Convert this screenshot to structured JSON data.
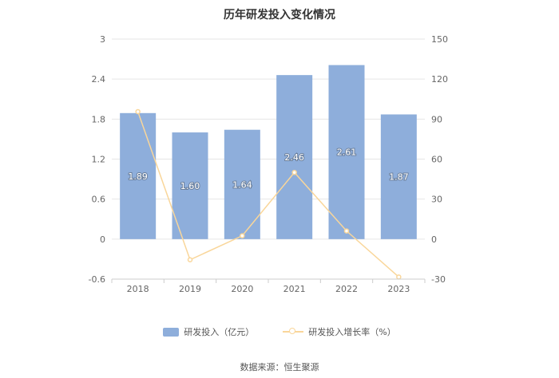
{
  "chart_data": {
    "type": "bar",
    "title": "历年研发投入变化情况",
    "categories": [
      "2018",
      "2019",
      "2020",
      "2021",
      "2022",
      "2023"
    ],
    "series": [
      {
        "name": "研发投入（亿元）",
        "type": "bar",
        "axis": "left",
        "values": [
          1.89,
          1.6,
          1.64,
          2.46,
          2.61,
          1.87
        ],
        "labels": [
          "1.89",
          "1.60",
          "1.64",
          "2.46",
          "2.61",
          "1.87"
        ],
        "color": "#8eaedb"
      },
      {
        "name": "研发投入增长率（%）",
        "type": "line",
        "axis": "right",
        "values": [
          95.6,
          -15.5,
          2.5,
          50.0,
          6.1,
          -28.4
        ],
        "color": "#f9d69a"
      }
    ],
    "y_left": {
      "ylim": [
        -0.6,
        3
      ],
      "ticks": [
        "-0.6",
        "0",
        "0.6",
        "1.2",
        "1.8",
        "2.4",
        "3"
      ]
    },
    "y_right": {
      "ylim": [
        -30,
        150
      ],
      "ticks": [
        "-30",
        "0",
        "30",
        "60",
        "90",
        "120",
        "150"
      ]
    },
    "grid": true,
    "legend_position": "bottom"
  },
  "source": "数据来源：恒生聚源"
}
